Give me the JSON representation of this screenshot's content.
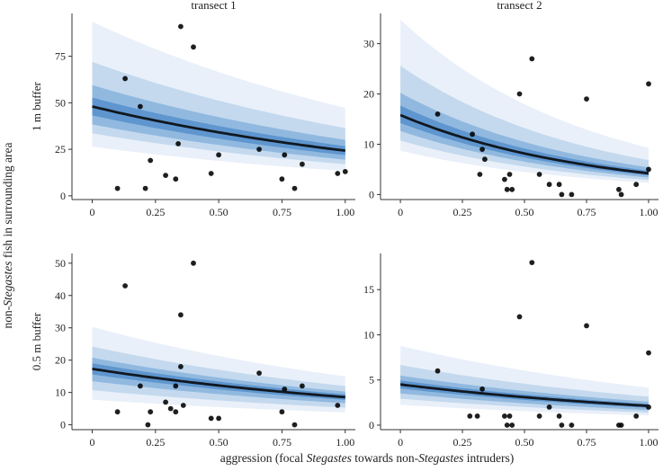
{
  "chart_data": {
    "type": "scatter",
    "xlabel_parts": [
      {
        "text": "aggression (focal ",
        "italic": false
      },
      {
        "text": "Stegastes",
        "italic": true
      },
      {
        "text": " towards non-",
        "italic": false
      },
      {
        "text": "Stegastes",
        "italic": true
      },
      {
        "text": " intruders)",
        "italic": false
      }
    ],
    "ylabel_parts": [
      {
        "text": "non-",
        "italic": false
      },
      {
        "text": "Stegastes",
        "italic": true
      },
      {
        "text": " fish in surrounding area",
        "italic": false
      }
    ],
    "columns": [
      "transect 1",
      "transect 2"
    ],
    "rows": [
      "1 m buffer",
      "0.5 m buffer"
    ],
    "x_ticks": [
      "0",
      "0.25",
      "0.50",
      "0.75",
      "1.00"
    ],
    "xlim": [
      -0.08,
      1.04
    ],
    "colors": {
      "band_outer": "#e9f0f9",
      "band_2": "#c4d9ee",
      "band_3": "#91b9df",
      "band_inner": "#5f96cf",
      "fit_line": "#111820",
      "point": "#000000"
    },
    "panels": [
      {
        "row": "1 m buffer",
        "column": "transect 1",
        "ylim": [
          -2,
          98
        ],
        "yticks": [
          0,
          25,
          50,
          75
        ],
        "fit": {
          "a": 48,
          "b": -0.31
        },
        "bands": [
          {
            "lo": 0.55,
            "hi": 1.95
          },
          {
            "lo": 0.7,
            "hi": 1.5
          },
          {
            "lo": 0.8,
            "hi": 1.24
          },
          {
            "lo": 0.9,
            "hi": 1.1
          }
        ],
        "points": [
          {
            "x": 0.1,
            "y": 4
          },
          {
            "x": 0.13,
            "y": 63
          },
          {
            "x": 0.19,
            "y": 48
          },
          {
            "x": 0.21,
            "y": 4
          },
          {
            "x": 0.23,
            "y": 19
          },
          {
            "x": 0.29,
            "y": 11
          },
          {
            "x": 0.33,
            "y": 9
          },
          {
            "x": 0.34,
            "y": 28
          },
          {
            "x": 0.35,
            "y": 91
          },
          {
            "x": 0.4,
            "y": 80
          },
          {
            "x": 0.47,
            "y": 12
          },
          {
            "x": 0.5,
            "y": 22
          },
          {
            "x": 0.66,
            "y": 25
          },
          {
            "x": 0.75,
            "y": 9
          },
          {
            "x": 0.76,
            "y": 22
          },
          {
            "x": 0.8,
            "y": 4
          },
          {
            "x": 0.83,
            "y": 17
          },
          {
            "x": 0.97,
            "y": 12
          },
          {
            "x": 1.0,
            "y": 13
          }
        ]
      },
      {
        "row": "1 m buffer",
        "column": "transect 2",
        "ylim": [
          -1,
          36
        ],
        "yticks": [
          0,
          10,
          20,
          30
        ],
        "fit": {
          "a": 15.8,
          "b": -0.6
        },
        "bands": [
          {
            "lo": 0.55,
            "hi": 2.2
          },
          {
            "lo": 0.68,
            "hi": 1.62
          },
          {
            "lo": 0.8,
            "hi": 1.28
          },
          {
            "lo": 0.9,
            "hi": 1.12
          }
        ],
        "points": [
          {
            "x": 0.15,
            "y": 16
          },
          {
            "x": 0.29,
            "y": 12
          },
          {
            "x": 0.32,
            "y": 4
          },
          {
            "x": 0.33,
            "y": 9
          },
          {
            "x": 0.34,
            "y": 7
          },
          {
            "x": 0.42,
            "y": 3
          },
          {
            "x": 0.43,
            "y": 1
          },
          {
            "x": 0.44,
            "y": 4
          },
          {
            "x": 0.45,
            "y": 1
          },
          {
            "x": 0.48,
            "y": 20
          },
          {
            "x": 0.53,
            "y": 27
          },
          {
            "x": 0.56,
            "y": 4
          },
          {
            "x": 0.6,
            "y": 2
          },
          {
            "x": 0.64,
            "y": 2
          },
          {
            "x": 0.65,
            "y": 0
          },
          {
            "x": 0.69,
            "y": 0
          },
          {
            "x": 0.75,
            "y": 19
          },
          {
            "x": 0.88,
            "y": 1
          },
          {
            "x": 0.89,
            "y": 0
          },
          {
            "x": 0.95,
            "y": 2
          },
          {
            "x": 1.0,
            "y": 22
          },
          {
            "x": 1.0,
            "y": 5
          }
        ]
      },
      {
        "row": "0.5 m buffer",
        "column": "transect 1",
        "ylim": [
          -1.5,
          53
        ],
        "yticks": [
          0,
          10,
          20,
          30,
          40,
          50
        ],
        "fit": {
          "a": 17.3,
          "b": -0.32
        },
        "bands": [
          {
            "lo": 0.45,
            "hi": 1.75
          },
          {
            "lo": 0.62,
            "hi": 1.4
          },
          {
            "lo": 0.78,
            "hi": 1.2
          },
          {
            "lo": 0.9,
            "hi": 1.1
          }
        ],
        "points": [
          {
            "x": 0.1,
            "y": 4
          },
          {
            "x": 0.13,
            "y": 43
          },
          {
            "x": 0.19,
            "y": 12
          },
          {
            "x": 0.22,
            "y": 0
          },
          {
            "x": 0.23,
            "y": 4
          },
          {
            "x": 0.29,
            "y": 7
          },
          {
            "x": 0.31,
            "y": 5
          },
          {
            "x": 0.33,
            "y": 4
          },
          {
            "x": 0.33,
            "y": 12
          },
          {
            "x": 0.35,
            "y": 34
          },
          {
            "x": 0.35,
            "y": 18
          },
          {
            "x": 0.36,
            "y": 6
          },
          {
            "x": 0.4,
            "y": 50
          },
          {
            "x": 0.47,
            "y": 2
          },
          {
            "x": 0.5,
            "y": 2
          },
          {
            "x": 0.66,
            "y": 16
          },
          {
            "x": 0.75,
            "y": 4
          },
          {
            "x": 0.76,
            "y": 11
          },
          {
            "x": 0.8,
            "y": 0
          },
          {
            "x": 0.83,
            "y": 12
          },
          {
            "x": 0.97,
            "y": 6
          }
        ]
      },
      {
        "row": "0.5 m buffer",
        "column": "transect 2",
        "ylim": [
          -0.5,
          19
        ],
        "yticks": [
          0,
          5,
          10,
          15
        ],
        "fit": {
          "a": 4.5,
          "b": -0.34
        },
        "bands": [
          {
            "lo": 0.5,
            "hi": 1.95
          },
          {
            "lo": 0.65,
            "hi": 1.48
          },
          {
            "lo": 0.78,
            "hi": 1.22
          },
          {
            "lo": 0.9,
            "hi": 1.1
          }
        ],
        "points": [
          {
            "x": 0.15,
            "y": 6
          },
          {
            "x": 0.28,
            "y": 1
          },
          {
            "x": 0.31,
            "y": 1
          },
          {
            "x": 0.33,
            "y": 4
          },
          {
            "x": 0.42,
            "y": 1
          },
          {
            "x": 0.43,
            "y": 0
          },
          {
            "x": 0.44,
            "y": 1
          },
          {
            "x": 0.45,
            "y": 0
          },
          {
            "x": 0.48,
            "y": 12
          },
          {
            "x": 0.53,
            "y": 18
          },
          {
            "x": 0.56,
            "y": 1
          },
          {
            "x": 0.6,
            "y": 2
          },
          {
            "x": 0.64,
            "y": 1
          },
          {
            "x": 0.65,
            "y": 0
          },
          {
            "x": 0.69,
            "y": 0
          },
          {
            "x": 0.75,
            "y": 11
          },
          {
            "x": 0.88,
            "y": 0
          },
          {
            "x": 0.89,
            "y": 0
          },
          {
            "x": 0.95,
            "y": 1
          },
          {
            "x": 1.0,
            "y": 8
          },
          {
            "x": 1.0,
            "y": 2
          }
        ]
      }
    ]
  }
}
